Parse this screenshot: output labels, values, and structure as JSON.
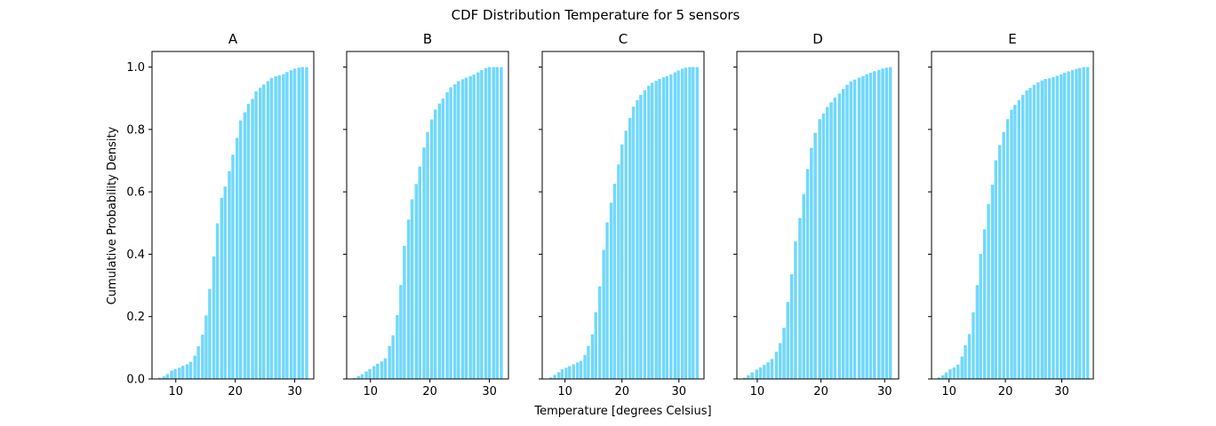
{
  "figure": {
    "title": "CDF Distribution Temperature for 5 sensors",
    "xlabel": "Temperature [degrees Celsius]",
    "ylabel": "Cumulative Probability Density"
  },
  "colors": {
    "bar": "#72d8fb",
    "axes": "#000000",
    "background": "#ffffff"
  },
  "chart_data": [
    {
      "type": "bar",
      "title": "A",
      "xlim": [
        6.0,
        33.2
      ],
      "ylim": [
        0,
        1.05
      ],
      "xticks": [
        10,
        20,
        30
      ],
      "yticks": [
        0.0,
        0.2,
        0.4,
        0.6,
        0.8,
        1.0
      ],
      "x": [
        7.3,
        8.0,
        8.6,
        9.3,
        9.9,
        10.6,
        11.2,
        11.9,
        12.5,
        13.2,
        13.8,
        14.5,
        15.1,
        15.7,
        16.4,
        17.0,
        17.7,
        18.3,
        19.0,
        19.6,
        20.3,
        20.9,
        21.6,
        22.2,
        22.9,
        23.5,
        24.2,
        24.8,
        25.5,
        26.1,
        26.8,
        27.4,
        28.1,
        28.7,
        29.4,
        30.0,
        30.7,
        31.3,
        32.0
      ],
      "values": [
        0.004,
        0.008,
        0.016,
        0.027,
        0.032,
        0.036,
        0.042,
        0.047,
        0.055,
        0.075,
        0.105,
        0.142,
        0.204,
        0.289,
        0.393,
        0.499,
        0.581,
        0.617,
        0.666,
        0.719,
        0.773,
        0.829,
        0.855,
        0.882,
        0.898,
        0.922,
        0.934,
        0.944,
        0.955,
        0.965,
        0.97,
        0.974,
        0.977,
        0.984,
        0.99,
        0.995,
        0.998,
        1.0,
        1.0
      ]
    },
    {
      "type": "bar",
      "title": "B",
      "xlim": [
        6.0,
        33.2
      ],
      "ylim": [
        0,
        1.05
      ],
      "xticks": [
        10,
        20,
        30
      ],
      "yticks": [
        0.0,
        0.2,
        0.4,
        0.6,
        0.8,
        1.0
      ],
      "x": [
        7.3,
        8.0,
        8.6,
        9.3,
        9.9,
        10.6,
        11.2,
        11.9,
        12.5,
        13.2,
        13.8,
        14.5,
        15.1,
        15.7,
        16.4,
        17.0,
        17.7,
        18.3,
        19.0,
        19.6,
        20.3,
        20.9,
        21.6,
        22.2,
        22.9,
        23.5,
        24.2,
        24.8,
        25.5,
        26.1,
        26.8,
        27.4,
        28.1,
        28.7,
        29.4,
        30.0,
        30.7,
        31.3,
        32.0
      ],
      "values": [
        0.003,
        0.009,
        0.015,
        0.024,
        0.032,
        0.041,
        0.049,
        0.056,
        0.066,
        0.106,
        0.14,
        0.205,
        0.301,
        0.427,
        0.511,
        0.576,
        0.625,
        0.681,
        0.742,
        0.792,
        0.832,
        0.864,
        0.883,
        0.899,
        0.919,
        0.935,
        0.945,
        0.955,
        0.961,
        0.966,
        0.971,
        0.976,
        0.983,
        0.99,
        0.997,
        1.0,
        1.0,
        1.0,
        1.0
      ]
    },
    {
      "type": "bar",
      "title": "C",
      "xlim": [
        6.0,
        34.4
      ],
      "ylim": [
        0,
        1.05
      ],
      "xticks": [
        10,
        20,
        30
      ],
      "yticks": [
        0.0,
        0.2,
        0.4,
        0.6,
        0.8,
        1.0
      ],
      "x": [
        7.5,
        8.2,
        8.9,
        9.5,
        10.2,
        10.8,
        11.5,
        12.2,
        12.8,
        13.5,
        14.1,
        14.8,
        15.4,
        16.1,
        16.8,
        17.4,
        18.1,
        18.7,
        19.4,
        20.0,
        20.7,
        21.4,
        22.0,
        22.7,
        23.3,
        24.0,
        24.7,
        25.3,
        26.0,
        26.6,
        27.3,
        27.9,
        28.6,
        29.3,
        29.9,
        30.6,
        31.2,
        31.9,
        32.5,
        33.2
      ],
      "values": [
        0.005,
        0.013,
        0.022,
        0.031,
        0.036,
        0.041,
        0.047,
        0.053,
        0.058,
        0.077,
        0.106,
        0.143,
        0.214,
        0.297,
        0.414,
        0.502,
        0.565,
        0.626,
        0.688,
        0.752,
        0.796,
        0.837,
        0.873,
        0.894,
        0.911,
        0.926,
        0.94,
        0.95,
        0.956,
        0.962,
        0.967,
        0.971,
        0.977,
        0.983,
        0.989,
        0.995,
        0.998,
        1.0,
        1.0,
        1.0
      ]
    },
    {
      "type": "bar",
      "title": "D",
      "xlim": [
        6.8,
        32.2
      ],
      "ylim": [
        0,
        1.05
      ],
      "xticks": [
        10,
        20,
        30
      ],
      "yticks": [
        0.0,
        0.2,
        0.4,
        0.6,
        0.8,
        1.0
      ],
      "x": [
        8.0,
        8.6,
        9.2,
        9.9,
        10.5,
        11.1,
        11.7,
        12.3,
        13.0,
        13.6,
        14.2,
        14.8,
        15.4,
        16.0,
        16.7,
        17.3,
        17.9,
        18.5,
        19.1,
        19.8,
        20.4,
        21.0,
        21.6,
        22.2,
        22.9,
        23.5,
        24.1,
        24.7,
        25.3,
        26.0,
        26.6,
        27.2,
        27.8,
        28.4,
        29.1,
        29.7,
        30.3,
        30.9
      ],
      "values": [
        0.004,
        0.012,
        0.021,
        0.03,
        0.037,
        0.045,
        0.053,
        0.064,
        0.087,
        0.115,
        0.164,
        0.247,
        0.336,
        0.441,
        0.516,
        0.593,
        0.673,
        0.741,
        0.789,
        0.833,
        0.851,
        0.872,
        0.887,
        0.902,
        0.915,
        0.93,
        0.943,
        0.954,
        0.96,
        0.966,
        0.971,
        0.977,
        0.982,
        0.987,
        0.991,
        0.995,
        0.998,
        1.0
      ]
    },
    {
      "type": "bar",
      "title": "E",
      "xlim": [
        6.9,
        35.6
      ],
      "ylim": [
        0,
        1.05
      ],
      "xticks": [
        10,
        20,
        30
      ],
      "yticks": [
        0.0,
        0.2,
        0.4,
        0.6,
        0.8,
        1.0
      ],
      "x": [
        8.2,
        8.9,
        9.5,
        10.2,
        10.9,
        11.6,
        12.3,
        12.9,
        13.6,
        14.3,
        15.0,
        15.6,
        16.3,
        17.0,
        17.7,
        18.3,
        19.0,
        19.7,
        20.4,
        21.1,
        21.7,
        22.4,
        23.1,
        23.8,
        24.4,
        25.1,
        25.8,
        26.5,
        27.1,
        27.8,
        28.5,
        29.2,
        29.9,
        30.5,
        31.2,
        31.9,
        32.6,
        33.2,
        33.9,
        34.6
      ],
      "values": [
        0.005,
        0.012,
        0.021,
        0.031,
        0.037,
        0.046,
        0.072,
        0.108,
        0.144,
        0.214,
        0.301,
        0.401,
        0.48,
        0.561,
        0.623,
        0.701,
        0.75,
        0.792,
        0.833,
        0.863,
        0.879,
        0.894,
        0.911,
        0.925,
        0.933,
        0.943,
        0.951,
        0.957,
        0.962,
        0.964,
        0.968,
        0.972,
        0.977,
        0.982,
        0.986,
        0.99,
        0.994,
        0.997,
        1.0,
        1.0
      ]
    }
  ]
}
